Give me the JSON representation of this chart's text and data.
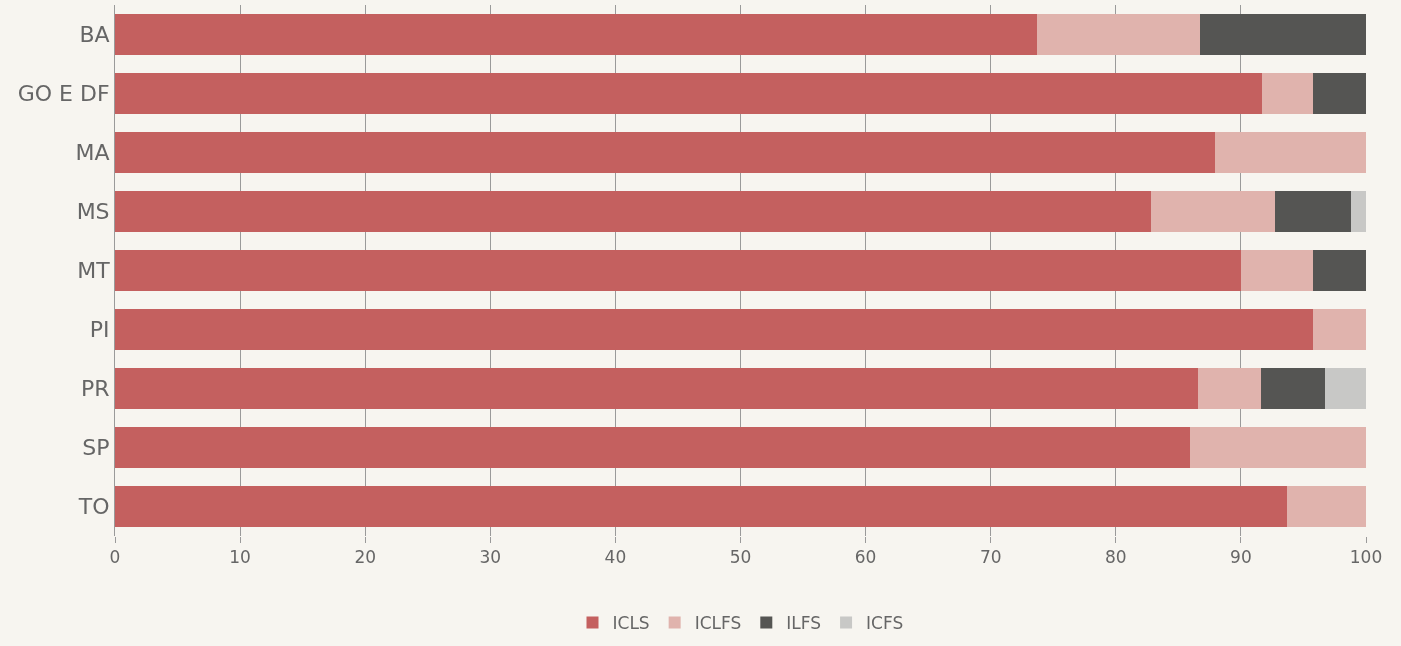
{
  "chart_data": {
    "type": "bar",
    "orientation": "horizontal",
    "stacked": true,
    "categories": [
      "BA",
      "GO E DF",
      "MA",
      "MS",
      "MT",
      "PI",
      "PR",
      "SP",
      "TO"
    ],
    "series": [
      {
        "name": "ICLS",
        "color": "#c4605f",
        "values": [
          73.7,
          91.7,
          87.9,
          82.8,
          90.0,
          95.8,
          86.6,
          85.9,
          93.7
        ]
      },
      {
        "name": "ICLFS",
        "color": "#e0b3ad",
        "values": [
          13.0,
          4.1,
          12.1,
          9.9,
          5.8,
          4.2,
          5.0,
          14.1,
          6.3
        ]
      },
      {
        "name": "ILFS",
        "color": "#555553",
        "values": [
          13.3,
          4.2,
          null,
          6.1,
          4.2,
          null,
          5.1,
          null,
          null
        ]
      },
      {
        "name": "ICFS",
        "color": "#c8c8c6",
        "values": [
          null,
          null,
          null,
          1.2,
          null,
          null,
          3.3,
          null,
          null
        ]
      }
    ],
    "xlim": [
      0,
      100
    ],
    "xticks": [
      0,
      10,
      20,
      30,
      40,
      50,
      60,
      70,
      80,
      90,
      100
    ],
    "grid": "x",
    "legend": "bottom"
  }
}
